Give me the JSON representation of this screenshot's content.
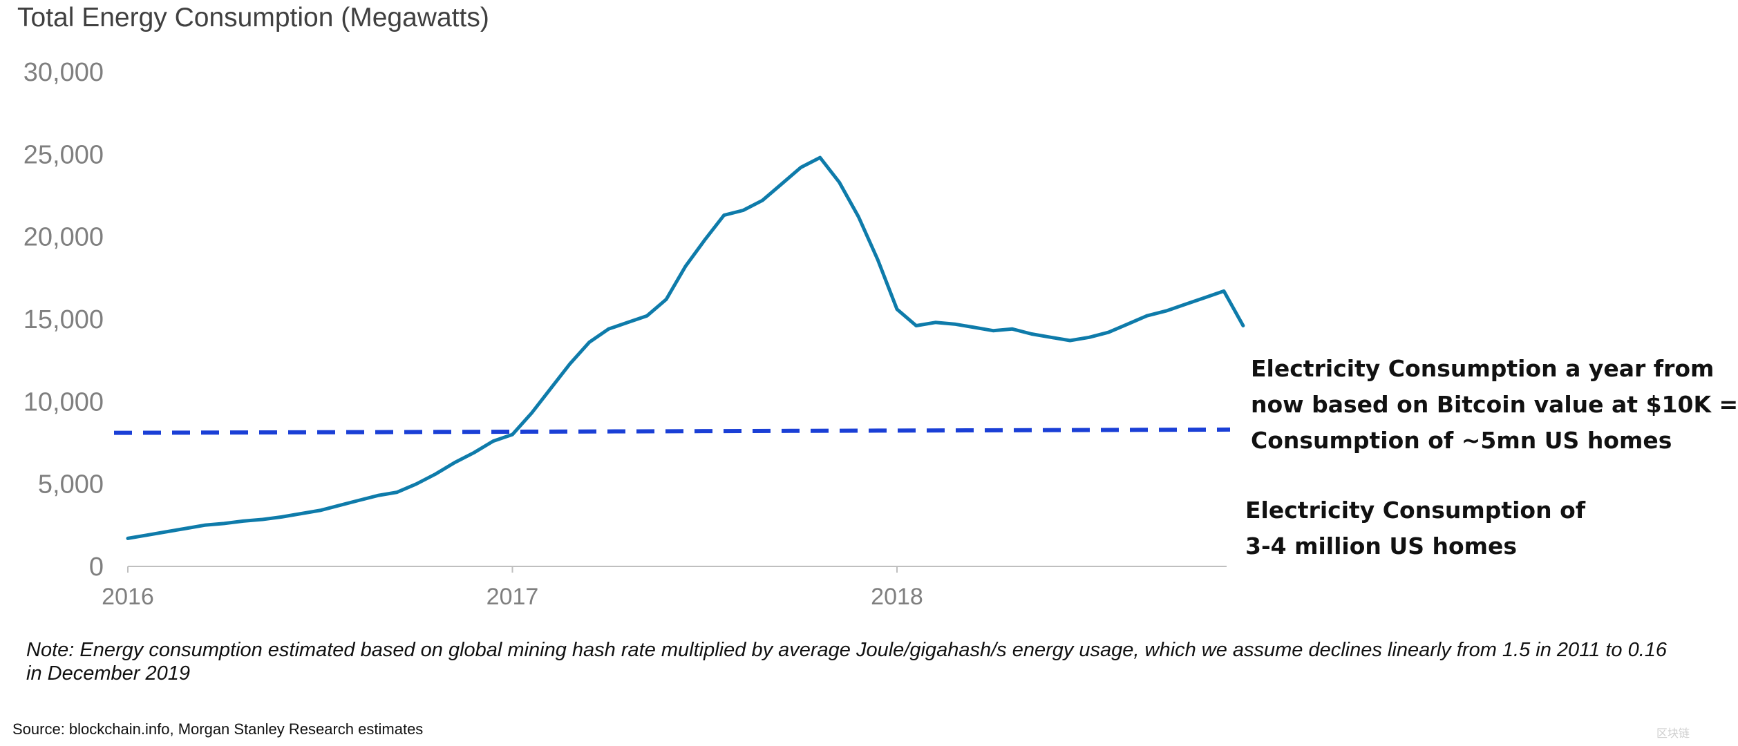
{
  "chart_data": {
    "type": "line",
    "title": "Total Energy Consumption (Megawatts)",
    "ylim": [
      0,
      30000
    ],
    "yticks": [
      "0",
      "5,000",
      "10,000",
      "15,000",
      "20,000",
      "25,000",
      "30,000"
    ],
    "xticks": [
      "2016",
      "2017",
      "2018"
    ],
    "grid": false,
    "legend": "none",
    "series_color": "#0E7BAA",
    "reference_line": {
      "style": "dashed",
      "color": "#1A3FD6",
      "y_start": 8100,
      "y_end": 8300
    },
    "x_units": "years",
    "series": [
      {
        "x": [
          2016.0,
          2016.05,
          2016.1,
          2016.15,
          2016.2,
          2016.25,
          2016.3,
          2016.35,
          2016.4,
          2016.45,
          2016.5,
          2016.55,
          2016.6,
          2016.65,
          2016.7,
          2016.75,
          2016.8,
          2016.85,
          2016.9,
          2016.95,
          2017.0,
          2017.05,
          2017.1,
          2017.15,
          2017.2,
          2017.25,
          2017.3,
          2017.35,
          2017.4,
          2017.45,
          2017.5,
          2017.55,
          2017.6,
          2017.65,
          2017.7,
          2017.75,
          2017.8,
          2017.85,
          2017.9,
          2017.95,
          2018.0,
          2018.05,
          2018.1,
          2018.15,
          2018.2,
          2018.25,
          2018.3,
          2018.35,
          2018.4,
          2018.45,
          2018.5,
          2018.55,
          2018.6,
          2018.65,
          2018.7,
          2018.75,
          2018.8,
          2018.85,
          2018.9
        ],
        "values": [
          1700,
          1900,
          2100,
          2300,
          2500,
          2600,
          2750,
          2850,
          3000,
          3200,
          3400,
          3700,
          4000,
          4300,
          4500,
          5000,
          5600,
          6300,
          6900,
          7600,
          8000,
          9300,
          10800,
          12300,
          13600,
          14400,
          14800,
          15200,
          16200,
          18200,
          19800,
          21300,
          21600,
          22200,
          23200,
          24200,
          24800,
          23300,
          21200,
          18600,
          15600,
          14600,
          14800,
          14700,
          14500,
          14300,
          14400,
          14100,
          13900,
          13700,
          13900,
          14200,
          14700,
          15200,
          15500,
          15900,
          16300,
          16700,
          14600
        ]
      }
    ]
  },
  "annotations": {
    "future_lines": [
      "Electricity Consumption a year from",
      "now based on Bitcoin value at $10K =",
      "Consumption of ~5mn US homes"
    ],
    "current_lines": [
      "Electricity Consumption of",
      "3-4 million US homes"
    ]
  },
  "note": "Note: Energy consumption estimated based on global mining hash rate multiplied by average Joule/gigahash/s energy usage, which we assume declines linearly from 1.5 in 2011 to 0.16 in December 2019",
  "source": "Source: blockchain.info, Morgan Stanley Research estimates",
  "watermark": "区块链"
}
